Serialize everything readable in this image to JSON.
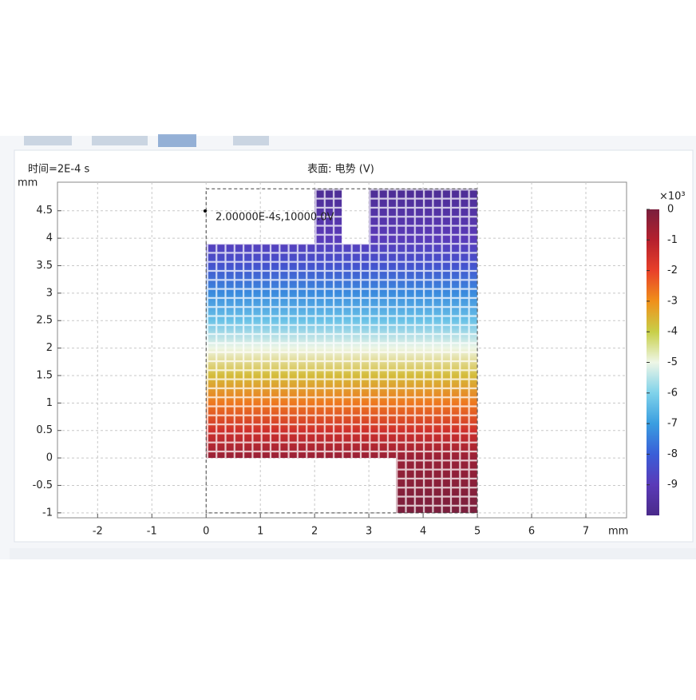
{
  "chart_data": {
    "type": "surface",
    "time_label": "时间=2E-4 s",
    "title": "表面: 电势 (V)",
    "x_label": "mm",
    "y_label": "mm",
    "annotation": "2.00000E-4s,10000.0V",
    "xlim": [
      -2.74,
      7.75
    ],
    "ylim": [
      -1.09,
      5.02
    ],
    "xticks": [
      -2,
      -1,
      0,
      1,
      2,
      3,
      4,
      5,
      6,
      7
    ],
    "yticks": [
      -1,
      -0.5,
      0,
      0.5,
      1,
      1.5,
      2,
      2.5,
      3,
      3.5,
      4,
      4.5
    ],
    "grid": true,
    "domain": [
      [
        0,
        0
      ],
      [
        3.5,
        0
      ],
      [
        3.5,
        -1
      ],
      [
        5,
        -1
      ],
      [
        5,
        4.9
      ],
      [
        3,
        4.9
      ],
      [
        3,
        3.9
      ],
      [
        2.5,
        3.9
      ],
      [
        2.5,
        4.9
      ],
      [
        2,
        4.9
      ],
      [
        2,
        3.9
      ],
      [
        0,
        3.9
      ]
    ],
    "profile": {
      "y": [
        -1,
        0,
        0.5,
        1,
        1.5,
        2,
        2.5,
        3,
        3.5,
        4,
        4.9
      ],
      "values": [
        0,
        -0.5,
        -1.5,
        -2.7,
        -3.7,
        -5,
        -6.3,
        -7.3,
        -8.3,
        -9,
        -9.8
      ]
    },
    "colorbar": {
      "exponent_label": "×10³",
      "clim": [
        -10,
        0
      ],
      "ticks": [
        0,
        -1,
        -2,
        -3,
        -4,
        -5,
        -6,
        -7,
        -8,
        -9
      ],
      "colormap": [
        "#4a2a8a",
        "#5a3ab8",
        "#3a5ed8",
        "#3a9ee0",
        "#7fd2ea",
        "#eef6e6",
        "#c8cf48",
        "#f0901a",
        "#e8402a",
        "#b5202e",
        "#7a1f3d"
      ]
    }
  }
}
